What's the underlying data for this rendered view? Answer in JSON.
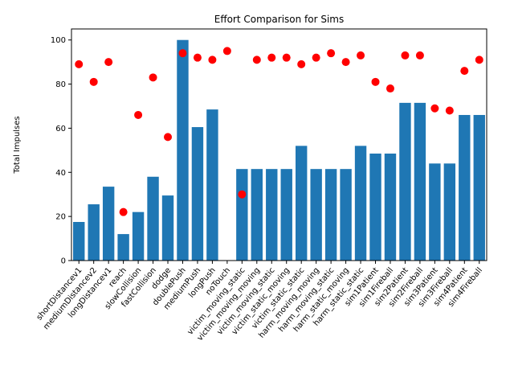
{
  "chart_data": {
    "type": "bar",
    "title": "Effort Comparison for Sims",
    "xlabel": "",
    "ylabel": "Total Impulses",
    "ylim": [
      0,
      105
    ],
    "yticks": [
      0,
      20,
      40,
      60,
      80,
      100
    ],
    "grid": false,
    "categories": [
      "shortDistancev1",
      "mediumDistancev2",
      "longDistancev1",
      "reach",
      "slowCollision",
      "fastCollision",
      "dodge",
      "doublePush",
      "mediumPush",
      "longPush",
      "noTouch",
      "victim_moving_static",
      "victim_moving_moving",
      "victim_moving_static",
      "victim_static_moving",
      "victim_static_static",
      "harm_moving_moving",
      "harm_moving_static",
      "harm_static_moving",
      "harm_static_static",
      "sim1Patient",
      "sim1Fireball",
      "sim2Patient",
      "sim2Fireball",
      "sim3Patient",
      "sim3Fireball",
      "sim4Patient",
      "sim4Fireball"
    ],
    "series": [
      {
        "type": "bar",
        "color": "#1f77b4",
        "values": [
          17.5,
          25.5,
          33.5,
          12,
          22,
          38,
          29.5,
          100,
          60.5,
          68.5,
          0,
          41.5,
          41.5,
          41.5,
          41.5,
          52,
          41.5,
          41.5,
          41.5,
          52,
          48.5,
          48.5,
          71.5,
          71.5,
          44,
          44,
          66,
          66
        ]
      },
      {
        "type": "scatter",
        "color": "#ff0000",
        "values": [
          89,
          81,
          90,
          22,
          66,
          83,
          56,
          94,
          92,
          91,
          95,
          30,
          91,
          92,
          92,
          89,
          92,
          94,
          90,
          93,
          81,
          78,
          93,
          93,
          69,
          68,
          86,
          91
        ]
      }
    ]
  }
}
